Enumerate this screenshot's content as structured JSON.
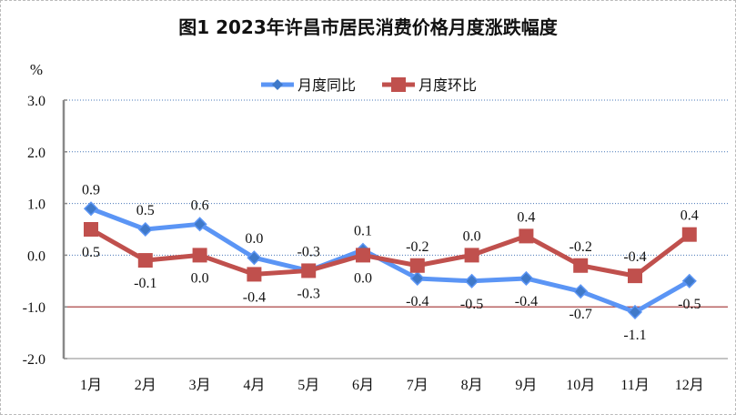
{
  "title": "图1   2023年许昌市居民消费价格月度涨跌幅度",
  "chart_data": {
    "type": "line",
    "title": "图1   2023年许昌市居民消费价格月度涨跌幅度",
    "ylabel": "%",
    "xlabel": "",
    "ylim": [
      -2.0,
      3.0
    ],
    "yticks": [
      "3.0",
      "2.0",
      "1.0",
      "0.0",
      "-1.0",
      "-2.0"
    ],
    "categories": [
      "1月",
      "2月",
      "3月",
      "4月",
      "5月",
      "6月",
      "7月",
      "8月",
      "9月",
      "10月",
      "11月",
      "12月"
    ],
    "legend_position": "top-right",
    "series": [
      {
        "name": "月度同比",
        "color": "#5b95f5",
        "marker": "diamond",
        "values": [
          0.9,
          0.5,
          0.6,
          -0.05,
          -0.3,
          0.1,
          -0.45,
          -0.5,
          -0.45,
          -0.7,
          -1.1,
          -0.5
        ],
        "labels": [
          "0.9",
          "0.5",
          "0.6",
          "0.0",
          "-0.3",
          "0.1",
          "-0.4",
          "-0.5",
          "-0.4",
          "-0.7",
          "-1.1",
          "-0.5"
        ]
      },
      {
        "name": "月度环比",
        "color": "#c0504d",
        "marker": "square",
        "values": [
          0.5,
          -0.1,
          0.0,
          -0.37,
          -0.3,
          0.0,
          -0.2,
          0.0,
          0.37,
          -0.2,
          -0.4,
          0.4
        ],
        "labels": [
          "0.5",
          "-0.1",
          "0.0",
          "-0.4",
          "-0.3",
          "0.0",
          "-0.2",
          "0.0",
          "0.4",
          "-0.2",
          "-0.4",
          "0.4"
        ]
      }
    ]
  }
}
